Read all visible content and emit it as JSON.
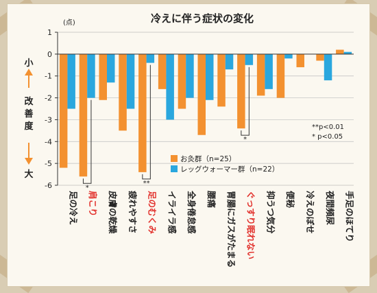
{
  "chart_data": {
    "type": "bar",
    "title": "冷えに伴う症状の変化",
    "unit_label": "(点)",
    "ylim": [
      -6,
      1
    ],
    "yticks": [
      1,
      0,
      -1,
      -2,
      -3,
      -4,
      -5,
      -6
    ],
    "ylabel_top": "小",
    "ylabel_middle": "改善度",
    "ylabel_bottom": "大",
    "categories": [
      "足の冷え",
      "肩こり",
      "皮膚の乾燥",
      "疲れやすさ",
      "足のむくみ",
      "イライラ感",
      "全身倦怠感",
      "腰痛",
      "胃腸にガスがたまる",
      "ぐっすり眠れない",
      "抑うつ気分",
      "便秘",
      "冷えのぼせ",
      "夜間頻尿",
      "手足のほてり"
    ],
    "highlighted_categories": [
      "肩こり",
      "足のむくみ",
      "ぐっすり眠れない"
    ],
    "series": [
      {
        "name": "お灸群（n=25）",
        "color": "#f39130",
        "values": [
          -5.2,
          -5.6,
          -2.1,
          -3.5,
          -5.4,
          -1.6,
          -2.5,
          -3.7,
          -2.4,
          -3.4,
          -1.9,
          -2.0,
          -0.6,
          -0.3,
          0.2
        ]
      },
      {
        "name": "レッグウォーマー群（n=22）",
        "color": "#2aa7de",
        "values": [
          -2.5,
          -2.0,
          -1.3,
          -2.5,
          -0.4,
          -3.0,
          -2.0,
          -2.1,
          -0.7,
          -0.5,
          -1.6,
          -0.2,
          0.0,
          -1.2,
          0.1
        ]
      }
    ],
    "significance": [
      {
        "category": "肩こり",
        "mark": "*"
      },
      {
        "category": "足のむくみ",
        "mark": "**"
      },
      {
        "category": "ぐっすり眠れない",
        "mark": "*"
      }
    ],
    "legend_position": "lower-center",
    "notes": [
      "**p<0.01",
      "*  p<0.05"
    ],
    "grid": true
  }
}
